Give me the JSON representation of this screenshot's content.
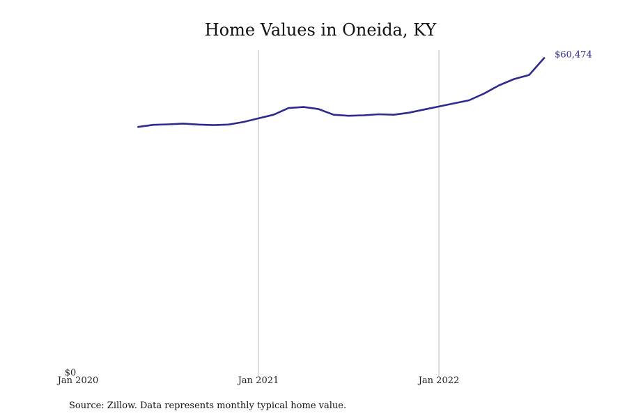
{
  "chart_data": {
    "type": "line",
    "title": "Home Values in Oneida, KY",
    "source": "Source: Zillow. Data represents monthly typical home value.",
    "xlabel": "",
    "ylabel": "",
    "x_ticks": [
      "Jan 2020",
      "Jan 2021",
      "Jan 2022"
    ],
    "y_tick_label": "$0",
    "ylim": [
      0,
      62000
    ],
    "grid": "vertical gridlines at yearly ticks",
    "line_color": "#2e2a8e",
    "end_label": "$60,474",
    "series": [
      {
        "x": [
          "2020-05",
          "2020-06",
          "2020-07",
          "2020-08",
          "2020-09",
          "2020-10",
          "2020-11",
          "2020-12",
          "2021-01",
          "2021-02",
          "2021-03",
          "2021-04",
          "2021-05",
          "2021-06",
          "2021-07",
          "2021-08",
          "2021-09",
          "2021-10",
          "2021-11",
          "2021-12",
          "2022-01",
          "2022-02",
          "2022-03",
          "2022-04",
          "2022-05",
          "2022-06",
          "2022-07",
          "2022-08"
        ],
        "values": [
          47150,
          47550,
          47650,
          47800,
          47600,
          47500,
          47600,
          48100,
          48800,
          49500,
          50800,
          51000,
          50600,
          49500,
          49300,
          49400,
          49600,
          49500,
          49900,
          50500,
          51100,
          51700,
          52300,
          53600,
          55200,
          56400,
          57200,
          60474
        ]
      }
    ]
  }
}
